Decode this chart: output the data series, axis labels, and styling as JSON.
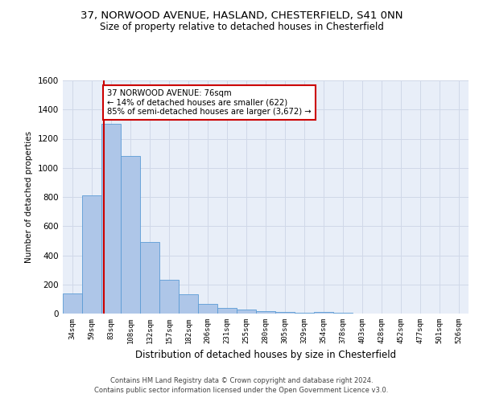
{
  "title_line1": "37, NORWOOD AVENUE, HASLAND, CHESTERFIELD, S41 0NN",
  "title_line2": "Size of property relative to detached houses in Chesterfield",
  "xlabel": "Distribution of detached houses by size in Chesterfield",
  "ylabel": "Number of detached properties",
  "footnote1": "Contains HM Land Registry data © Crown copyright and database right 2024.",
  "footnote2": "Contains public sector information licensed under the Open Government Licence v3.0.",
  "annotation_line1": "37 NORWOOD AVENUE: 76sqm",
  "annotation_line2": "← 14% of detached houses are smaller (622)",
  "annotation_line3": "85% of semi-detached houses are larger (3,672) →",
  "bar_color": "#aec6e8",
  "bar_edge_color": "#5b9bd5",
  "red_line_color": "#cc0000",
  "categories": [
    "34sqm",
    "59sqm",
    "83sqm",
    "108sqm",
    "132sqm",
    "157sqm",
    "182sqm",
    "206sqm",
    "231sqm",
    "255sqm",
    "280sqm",
    "305sqm",
    "329sqm",
    "354sqm",
    "378sqm",
    "403sqm",
    "428sqm",
    "452sqm",
    "477sqm",
    "501sqm",
    "526sqm"
  ],
  "values": [
    140,
    810,
    1300,
    1080,
    490,
    230,
    130,
    65,
    38,
    25,
    18,
    10,
    8,
    12,
    3,
    2,
    1,
    1,
    1,
    1,
    1
  ],
  "ylim": [
    0,
    1600
  ],
  "yticks": [
    0,
    200,
    400,
    600,
    800,
    1000,
    1200,
    1400,
    1600
  ],
  "grid_color": "#d0d8e8",
  "background_color": "#e8eef8"
}
